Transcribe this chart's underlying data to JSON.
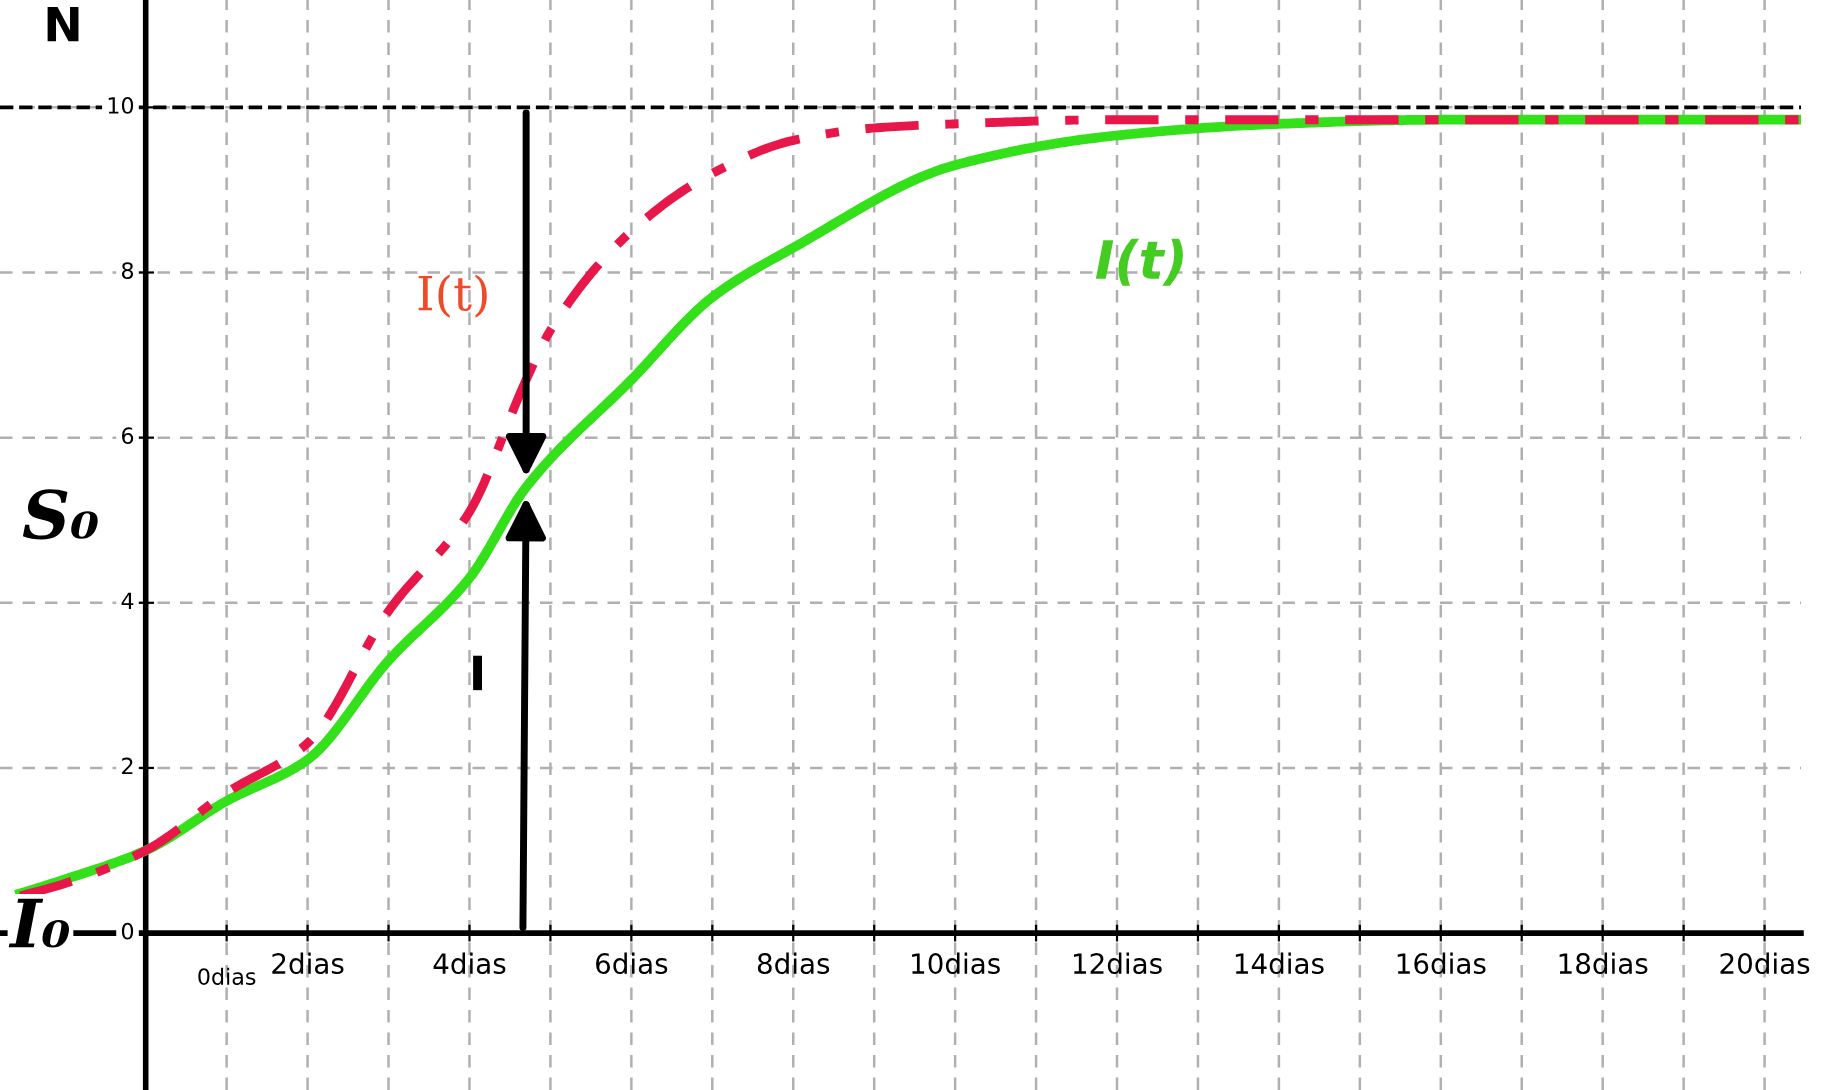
{
  "chart_data": {
    "type": "line",
    "ylabel": "N",
    "xlim": [
      -1.8,
      20.45
    ],
    "ylim": [
      -1.9,
      11.3
    ],
    "xticks": [
      {
        "value": 1,
        "label": null
      },
      {
        "value": 2,
        "label": "2dias"
      },
      {
        "value": 3,
        "label": null
      },
      {
        "value": 4,
        "label": "4dias"
      },
      {
        "value": 5,
        "label": null
      },
      {
        "value": 6,
        "label": "6dias"
      },
      {
        "value": 7,
        "label": null
      },
      {
        "value": 8,
        "label": "8dias"
      },
      {
        "value": 9,
        "label": null
      },
      {
        "value": 10,
        "label": "10dias"
      },
      {
        "value": 11,
        "label": null
      },
      {
        "value": 12,
        "label": "12dias"
      },
      {
        "value": 13,
        "label": null
      },
      {
        "value": 14,
        "label": "14dias"
      },
      {
        "value": 15,
        "label": null
      },
      {
        "value": 16,
        "label": "16dias"
      },
      {
        "value": 17,
        "label": null
      },
      {
        "value": 18,
        "label": "18dias"
      },
      {
        "value": 19,
        "label": null
      },
      {
        "value": 20,
        "label": "20dias"
      }
    ],
    "yticks": [
      0,
      2,
      4,
      6,
      8,
      10
    ],
    "grid": true,
    "series": [
      {
        "color": "#e8174a",
        "line_style": "dashdot",
        "x": [
          -1.55,
          -1,
          0,
          1,
          2,
          3,
          4,
          4.7,
          5,
          6,
          7,
          8,
          9,
          10,
          12,
          14,
          16,
          18,
          20.45
        ],
        "values": [
          0.45,
          0.6,
          1.0,
          1.7,
          2.3,
          3.9,
          5.1,
          6.7,
          7.3,
          8.5,
          9.2,
          9.6,
          9.75,
          9.8,
          9.85,
          9.85,
          9.85,
          9.85,
          9.85
        ]
      },
      {
        "color": "#33e01a",
        "line_style": "solid",
        "x": [
          -1.55,
          -1,
          0,
          1,
          2,
          3,
          4,
          4.7,
          6,
          7,
          8,
          10,
          12,
          14,
          16,
          18,
          20.45
        ],
        "values": [
          0.48,
          0.65,
          1.0,
          1.6,
          2.1,
          3.3,
          4.3,
          5.4,
          6.7,
          7.7,
          8.3,
          9.3,
          9.66,
          9.8,
          9.85,
          9.85,
          9.85
        ]
      }
    ],
    "ref_lines": [
      {
        "axis": "y",
        "value": 10,
        "color": "#000000",
        "line_style": "dashed"
      }
    ],
    "annotations": [
      "I(t)",
      "I(t)",
      "I",
      "S₀",
      "I₀",
      "0dias"
    ]
  }
}
